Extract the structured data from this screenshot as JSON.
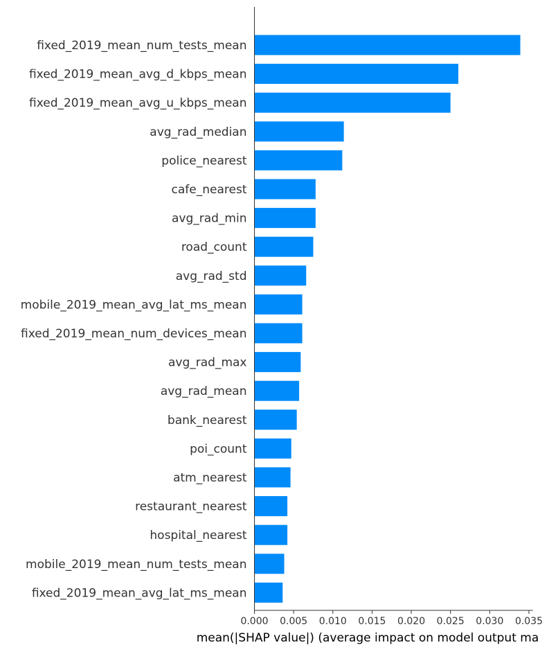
{
  "chart_data": {
    "type": "bar",
    "orientation": "horizontal",
    "title": "",
    "xlabel": "mean(|SHAP value|) (average impact on model output ma",
    "ylabel": "",
    "xlim": [
      0,
      0.0355
    ],
    "xticks": [
      0.0,
      0.005,
      0.01,
      0.015,
      0.02,
      0.025,
      0.03,
      0.035
    ],
    "xtick_labels": [
      "0.000",
      "0.005",
      "0.010",
      "0.015",
      "0.020",
      "0.025",
      "0.030",
      "0.035"
    ],
    "grid": false,
    "bar_color": "#008bfb",
    "categories": [
      "fixed_2019_mean_num_tests_mean",
      "fixed_2019_mean_avg_d_kbps_mean",
      "fixed_2019_mean_avg_u_kbps_mean",
      "avg_rad_median",
      "police_nearest",
      "cafe_nearest",
      "avg_rad_min",
      "road_count",
      "avg_rad_std",
      "mobile_2019_mean_avg_lat_ms_mean",
      "fixed_2019_mean_num_devices_mean",
      "avg_rad_max",
      "avg_rad_mean",
      "bank_nearest",
      "poi_count",
      "atm_nearest",
      "restaurant_nearest",
      "hospital_nearest",
      "mobile_2019_mean_num_tests_mean",
      "fixed_2019_mean_avg_lat_ms_mean"
    ],
    "values": [
      0.0339,
      0.026,
      0.025,
      0.0114,
      0.0112,
      0.0078,
      0.0078,
      0.0075,
      0.0066,
      0.0061,
      0.0061,
      0.0059,
      0.0057,
      0.0054,
      0.0047,
      0.0046,
      0.0042,
      0.0042,
      0.0038,
      0.0036
    ]
  },
  "colors": {
    "bar": "#008bfb",
    "axis": "#333333",
    "label_text": "#333333"
  }
}
